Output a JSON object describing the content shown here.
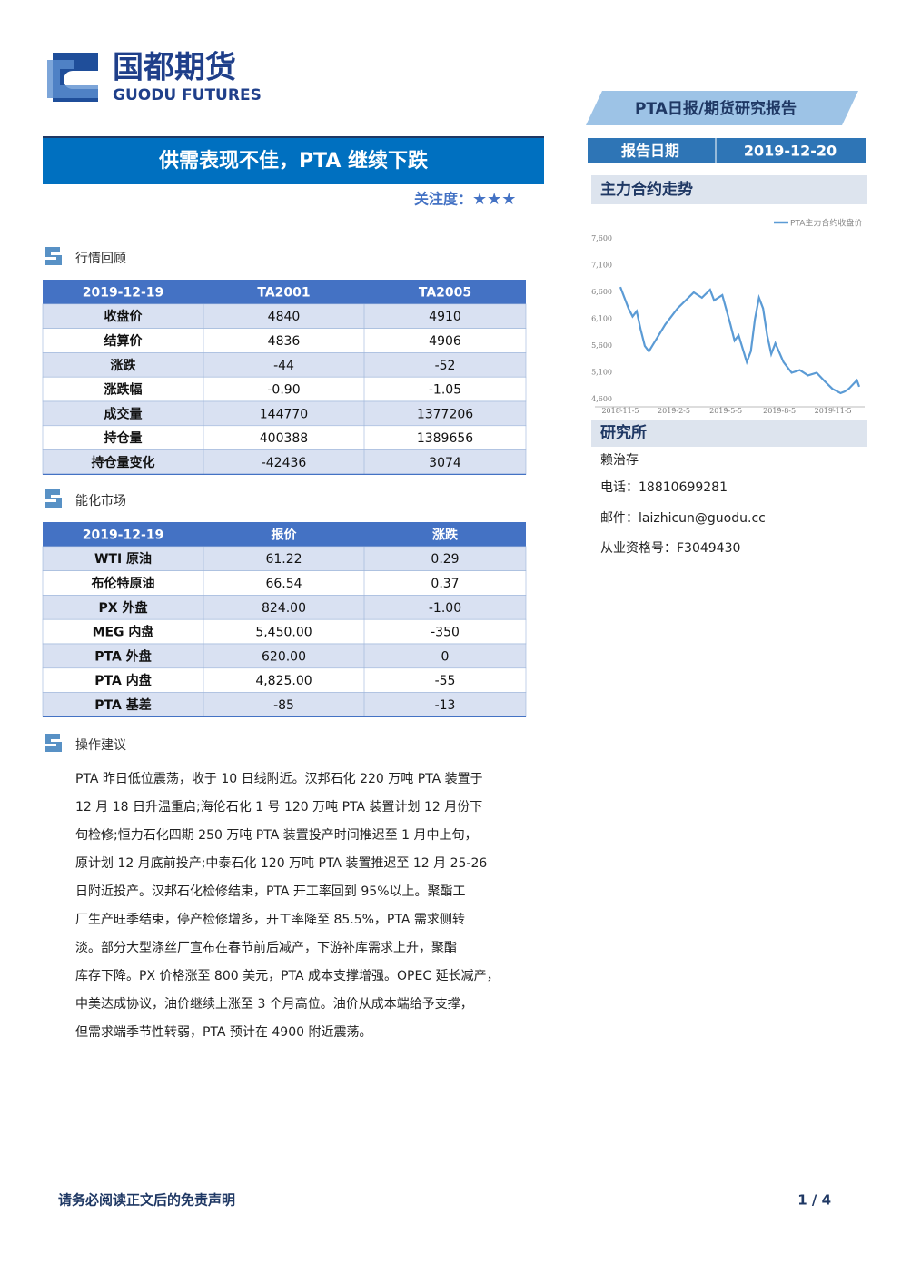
{
  "header": {
    "logo_cn": "国都期货",
    "logo_en": "GUODU FUTURES",
    "report_type": "PTA日报/期货研究报告",
    "date_label": "报告日期",
    "date": "2019-12-20"
  },
  "title": "供需表现不佳，PTA 继续下跌",
  "attention": {
    "label": "关注度：",
    "stars": "★★★"
  },
  "market_review": {
    "heading": "行情回顾",
    "table": {
      "header": [
        "2019-12-19",
        "TA2001",
        "TA2005"
      ],
      "rows": [
        [
          "收盘价",
          "4840",
          "4910"
        ],
        [
          "结算价",
          "4836",
          "4906"
        ],
        [
          "涨跌",
          "-44",
          "-52"
        ],
        [
          "涨跌幅",
          "-0.90",
          "-1.05"
        ],
        [
          "成交量",
          "144770",
          "1377206"
        ],
        [
          "持仓量",
          "400388",
          "1389656"
        ],
        [
          "持仓量变化",
          "-42436",
          "3074"
        ]
      ]
    }
  },
  "energy_market": {
    "heading": "能化市场",
    "table": {
      "header": [
        "2019-12-19",
        "报价",
        "涨跌"
      ],
      "rows": [
        [
          "WTI 原油",
          "61.22",
          "0.29"
        ],
        [
          "布伦特原油",
          "66.54",
          "0.37"
        ],
        [
          "PX 外盘",
          "824.00",
          "-1.00"
        ],
        [
          "MEG 内盘",
          "5,450.00",
          "-350"
        ],
        [
          "PTA 外盘",
          "620.00",
          "0"
        ],
        [
          "PTA 内盘",
          "4,825.00",
          "-55"
        ],
        [
          "PTA 基差",
          "-85",
          "-13"
        ]
      ]
    }
  },
  "advice": {
    "heading": "操作建议",
    "lines": [
      "PTA 昨日低位震荡，收于 10 日线附近。汉邦石化 220 万吨 PTA 装置于",
      "12 月 18 日升温重启;海伦石化 1 号 120 万吨 PTA 装置计划 12 月份下",
      "旬检修;恒力石化四期 250 万吨 PTA 装置投产时间推迟至 1 月中上旬，",
      "原计划 12 月底前投产;中泰石化 120 万吨 PTA 装置推迟至 12 月 25-26",
      "日附近投产。汉邦石化检修结束，PTA 开工率回到 95%以上。聚酯工",
      "厂生产旺季结束，停产检修增多，开工率降至 85.5%，PTA 需求侧转",
      "淡。部分大型涤丝厂宣布在春节前后减产，下游补库需求上升，聚酯",
      "库存下降。PX 价格涨至 800 美元，PTA 成本支撑增强。OPEC 延长减产，",
      "中美达成协议，油价继续上涨至 3 个月高位。油价从成本端给予支撑，",
      "但需求端季节性转弱，PTA 预计在 4900 附近震荡。"
    ]
  },
  "sidebar": {
    "chart_heading": "主力合约走势",
    "research_heading": "研究所",
    "analyst": "赖治存",
    "phone": "电话：18810699281",
    "email": "邮件：laizhicun@guodu.cc",
    "license": "从业资格号：F3049430"
  },
  "chart_data": {
    "type": "line",
    "x": [
      "2018-11-5",
      "2018-11-12",
      "2018-11-19",
      "2018-11-26",
      "2018-12-3",
      "2018-12-10",
      "2018-12-17",
      "2018-12-24",
      "2019-1-7",
      "2019-1-21",
      "2019-2-11",
      "2019-2-25",
      "2019-3-11",
      "2019-3-25",
      "2019-4-8",
      "2019-4-15",
      "2019-4-29",
      "2019-5-13",
      "2019-5-20",
      "2019-5-27",
      "2019-6-10",
      "2019-6-17",
      "2019-6-24",
      "2019-7-1",
      "2019-7-8",
      "2019-7-15",
      "2019-7-22",
      "2019-7-29",
      "2019-8-12",
      "2019-8-26",
      "2019-9-9",
      "2019-9-23",
      "2019-10-8",
      "2019-10-21",
      "2019-11-4",
      "2019-11-18",
      "2019-11-25",
      "2019-12-2",
      "2019-12-16",
      "2019-12-20"
    ],
    "series": [
      {
        "name": "PTA主力合约收盘价",
        "color": "#5b9bd5",
        "values": [
          6700,
          6500,
          6300,
          6150,
          6250,
          5900,
          5600,
          5500,
          5750,
          6000,
          6300,
          6450,
          6600,
          6500,
          6650,
          6450,
          6550,
          6000,
          5700,
          5800,
          5300,
          5500,
          6100,
          6500,
          6300,
          5800,
          5450,
          5650,
          5300,
          5100,
          5150,
          5050,
          5100,
          4950,
          4800,
          4720,
          4750,
          4800,
          4960,
          4840
        ]
      }
    ],
    "xlim": [
      "2018-11-5",
      "2019-12-20"
    ],
    "xticks": [
      "2018-11-5",
      "2019-2-5",
      "2019-5-5",
      "2019-8-5",
      "2019-11-5"
    ],
    "ylim": [
      4600,
      7600
    ],
    "yticks": [
      {
        "value": 4600,
        "label": "4,600"
      },
      {
        "value": 5100,
        "label": "5,100"
      },
      {
        "value": 5600,
        "label": "5,600"
      },
      {
        "value": 6100,
        "label": "6,100"
      },
      {
        "value": 6600,
        "label": "6,600"
      },
      {
        "value": 7100,
        "label": "7,100"
      },
      {
        "value": 7600,
        "label": "7,600"
      }
    ],
    "legend": "upper right"
  },
  "footer": {
    "disclaimer": "请务必阅读正文后的免责声明",
    "page": "1 / 4"
  }
}
